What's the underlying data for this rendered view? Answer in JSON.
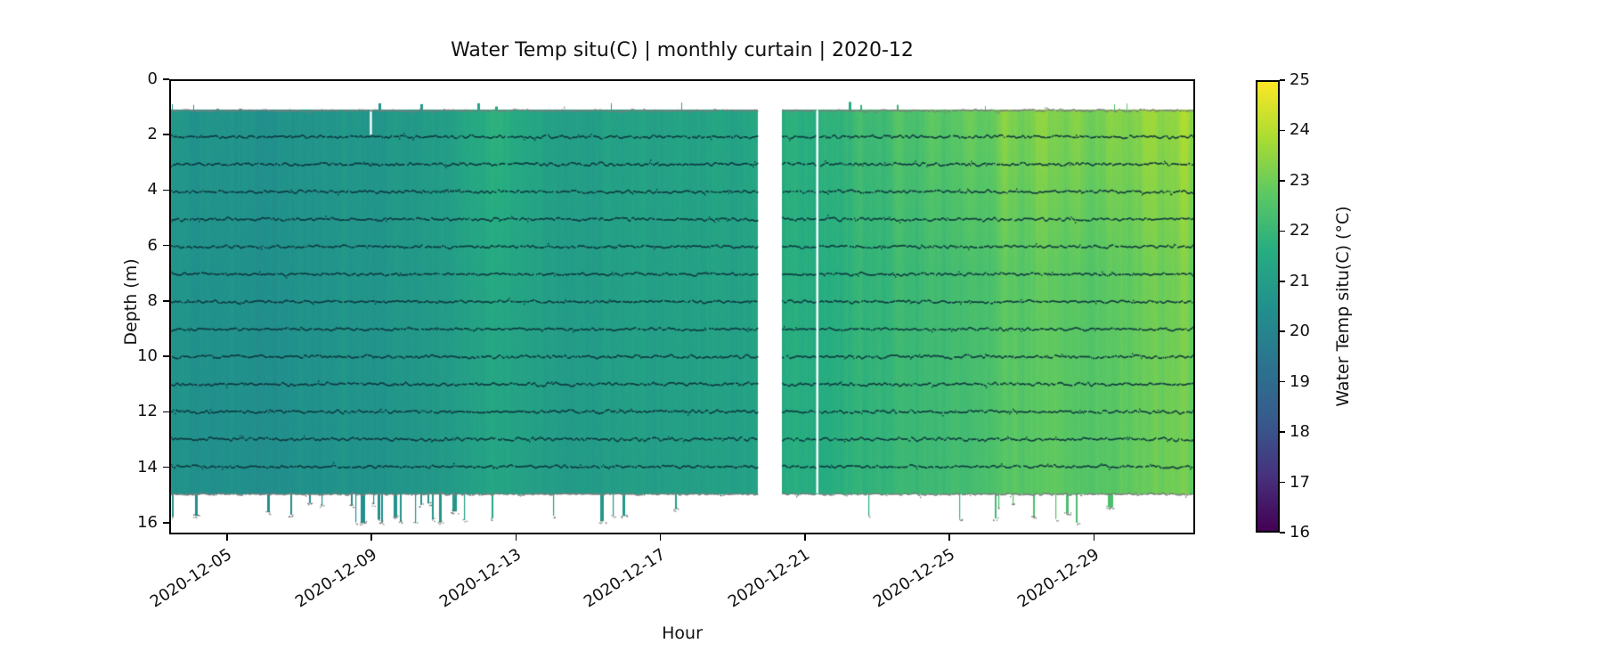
{
  "chart_data": {
    "type": "heatmap",
    "title": "Water Temp situ(C) | monthly curtain | 2020-12",
    "xlabel": "Hour",
    "ylabel": "Depth (m)",
    "grid": false,
    "x_axis": {
      "range_days": [
        3.4,
        31.8
      ],
      "ticks_days": [
        5,
        9,
        13,
        17,
        21,
        25,
        29
      ],
      "ticklabels": [
        "2020-12-05",
        "2020-12-09",
        "2020-12-13",
        "2020-12-17",
        "2020-12-21",
        "2020-12-25",
        "2020-12-29"
      ]
    },
    "y_axis": {
      "lim": [
        0,
        16.42
      ],
      "ticks": [
        0,
        2,
        4,
        6,
        8,
        10,
        12,
        14,
        16
      ]
    },
    "colorbar": {
      "label": "Water Temp situ(C) (°C)",
      "lim": [
        16,
        25
      ],
      "ticks": [
        16,
        17,
        18,
        19,
        20,
        21,
        22,
        23,
        24,
        25
      ],
      "position": "right"
    },
    "colormap": [
      "#440154",
      "#46327e",
      "#365c8d",
      "#2b748e",
      "#21918c",
      "#27ad81",
      "#5cc863",
      "#aadc32",
      "#fde725"
    ],
    "curtain_depth_range_m": [
      1.05,
      15.0
    ],
    "data_gaps_days": [
      [
        19.68,
        20.35
      ]
    ],
    "missing_columns_days": [
      {
        "day": 21.35,
        "depth_from": 1.05,
        "depth_to": 15.0
      },
      {
        "day": 8.95,
        "depth_from": 1.05,
        "depth_to": 1.95
      }
    ],
    "base_temp_series_day_c": [
      [
        3.4,
        20.7
      ],
      [
        5.0,
        20.6
      ],
      [
        6.5,
        20.55
      ],
      [
        8.0,
        20.7
      ],
      [
        9.5,
        20.8
      ],
      [
        11.0,
        20.95
      ],
      [
        12.4,
        21.45
      ],
      [
        13.3,
        21.2
      ],
      [
        14.5,
        21.05
      ],
      [
        16.0,
        21.15
      ],
      [
        17.5,
        21.2
      ],
      [
        19.68,
        21.3
      ],
      [
        20.35,
        21.6
      ],
      [
        21.4,
        21.55
      ],
      [
        22.5,
        21.85
      ],
      [
        24.0,
        22.05
      ],
      [
        25.5,
        22.3
      ],
      [
        26.8,
        22.65
      ],
      [
        28.0,
        22.8
      ],
      [
        29.0,
        22.6
      ],
      [
        30.2,
        22.9
      ],
      [
        31.0,
        23.0
      ],
      [
        31.8,
        23.1
      ]
    ],
    "midband_day": 12.4,
    "midband_boost_c": 0.35,
    "sensor_trace_depths_m": [
      2,
      3,
      4,
      5,
      6,
      7,
      8,
      9,
      10,
      11,
      12,
      13,
      14
    ],
    "boundary_line_depths_m": [
      1.05,
      15.0
    ],
    "streak_amplitude_c": 0.3,
    "diurnal_amplitude_c": [
      0.12,
      0.4
    ],
    "top_warm_boost_right_c": 0.55,
    "bottom_spike_max_depth_m": 16.08,
    "bottom_spike_density": [
      [
        3.4,
        6.5,
        0.035
      ],
      [
        6.5,
        12.8,
        0.1
      ],
      [
        12.8,
        17.0,
        0.045
      ],
      [
        17.0,
        19.7,
        0.012
      ],
      [
        20.35,
        22.2,
        0.012
      ],
      [
        22.2,
        31.8,
        0.045
      ]
    ],
    "top_spike_density": 0.012
  }
}
